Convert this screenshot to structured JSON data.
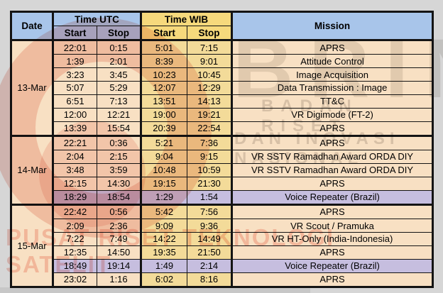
{
  "colors": {
    "page_bg": "#d6d6d6",
    "header_blue": "#a8c5ea",
    "header_yellow": "#f6d97c",
    "cell_peach": "#f8e0c3",
    "cell_yellow": "#f3db99",
    "cell_highlight_lavender": "#c6bedf",
    "border": "#141414"
  },
  "watermark": {
    "logo_text": "BRIN",
    "tagline_line1": "BADAN RISET",
    "tagline_line2": "DAN INOVASI NASIONAL",
    "bottom_text": "PUSAT RISET TEKNOLOGI SATELIT"
  },
  "table": {
    "headers": {
      "date": "Date",
      "time_utc": "Time UTC",
      "time_wib": "Time WIB",
      "start": "Start",
      "stop": "Stop",
      "mission": "Mission"
    },
    "groups": [
      {
        "date": "13-Mar",
        "rows": [
          {
            "utc_start": "22:01",
            "utc_stop": "0:15",
            "wib_start": "5:01",
            "wib_stop": "7:15",
            "mission": "APRS",
            "highlight": false
          },
          {
            "utc_start": "1:39",
            "utc_stop": "2:01",
            "wib_start": "8:39",
            "wib_stop": "9:01",
            "mission": "Attitude Control",
            "highlight": false
          },
          {
            "utc_start": "3:23",
            "utc_stop": "3:45",
            "wib_start": "10:23",
            "wib_stop": "10:45",
            "mission": "Image Acquisition",
            "highlight": false
          },
          {
            "utc_start": "5:07",
            "utc_stop": "5:29",
            "wib_start": "12:07",
            "wib_stop": "12:29",
            "mission": "Data Transmission : Image",
            "highlight": false
          },
          {
            "utc_start": "6:51",
            "utc_stop": "7:13",
            "wib_start": "13:51",
            "wib_stop": "14:13",
            "mission": "TT&C",
            "highlight": false
          },
          {
            "utc_start": "12:00",
            "utc_stop": "12:21",
            "wib_start": "19:00",
            "wib_stop": "19:21",
            "mission": "VR Digimode (FT-2)",
            "highlight": false
          },
          {
            "utc_start": "13:39",
            "utc_stop": "15:54",
            "wib_start": "20:39",
            "wib_stop": "22:54",
            "mission": "APRS",
            "highlight": false
          }
        ]
      },
      {
        "date": "14-Mar",
        "rows": [
          {
            "utc_start": "22:21",
            "utc_stop": "0:36",
            "wib_start": "5:21",
            "wib_stop": "7:36",
            "mission": "APRS",
            "highlight": false
          },
          {
            "utc_start": "2:04",
            "utc_stop": "2:15",
            "wib_start": "9:04",
            "wib_stop": "9:15",
            "mission": "VR SSTV Ramadhan Award ORDA DIY",
            "highlight": false
          },
          {
            "utc_start": "3:48",
            "utc_stop": "3:59",
            "wib_start": "10:48",
            "wib_stop": "10:59",
            "mission": "VR SSTV Ramadhan Award ORDA DIY",
            "highlight": false
          },
          {
            "utc_start": "12:15",
            "utc_stop": "14:30",
            "wib_start": "19:15",
            "wib_stop": "21:30",
            "mission": "APRS",
            "highlight": false
          },
          {
            "utc_start": "18:29",
            "utc_stop": "18:54",
            "wib_start": "1:29",
            "wib_stop": "1:54",
            "mission": "Voice Repeater (Brazil)",
            "highlight": true
          }
        ]
      },
      {
        "date": "15-Mar",
        "rows": [
          {
            "utc_start": "22:42",
            "utc_stop": "0:56",
            "wib_start": "5:42",
            "wib_stop": "7:56",
            "mission": "APRS",
            "highlight": false
          },
          {
            "utc_start": "2:09",
            "utc_stop": "2:36",
            "wib_start": "9:09",
            "wib_stop": "9:36",
            "mission": "VR Scout / Pramuka",
            "highlight": false
          },
          {
            "utc_start": "7:22",
            "utc_stop": "7:49",
            "wib_start": "14:22",
            "wib_stop": "14:49",
            "mission": "VR HT-Only (India-Indonesia)",
            "highlight": false
          },
          {
            "utc_start": "12:35",
            "utc_stop": "14:50",
            "wib_start": "19:35",
            "wib_stop": "21:50",
            "mission": "APRS",
            "highlight": false
          },
          {
            "utc_start": "18:49",
            "utc_stop": "19:14",
            "wib_start": "1:49",
            "wib_stop": "2:14",
            "mission": "Voice Repeater (Brazil)",
            "highlight": true
          },
          {
            "utc_start": "23:02",
            "utc_stop": "1:16",
            "wib_start": "6:02",
            "wib_stop": "8:16",
            "mission": "APRS",
            "highlight": false
          }
        ]
      }
    ]
  }
}
